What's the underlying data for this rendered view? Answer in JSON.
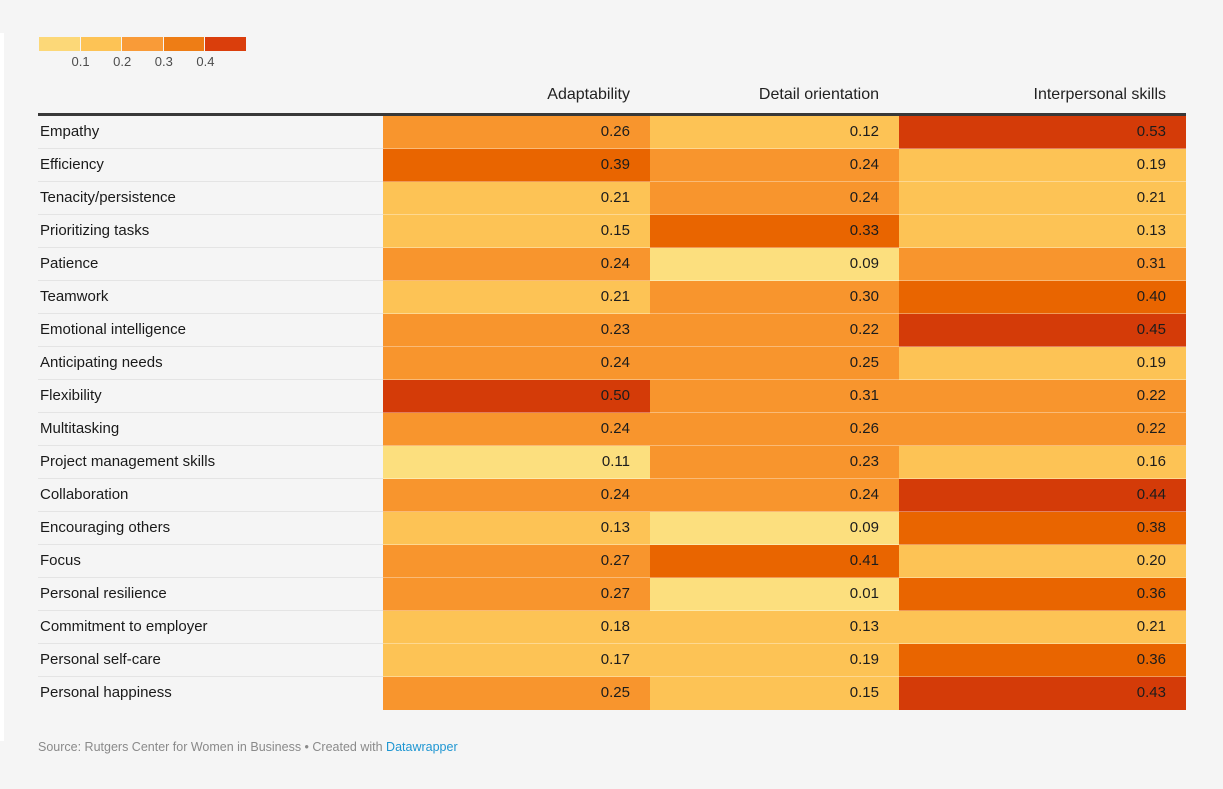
{
  "palette": {
    "cell_classes": [
      "#FCDF7E",
      "#FDC355",
      "#F8952D",
      "#E96500",
      "#D43B08"
    ],
    "header_border": "#383838",
    "link_blue": "#1E96D2",
    "page_background": "#F5F5F5"
  },
  "legend": {
    "swatches": [
      "#FCD878",
      "#FDC355",
      "#F99B38",
      "#EE7D15",
      "#DA3E0C"
    ],
    "ticks": [
      "0.1",
      "0.2",
      "0.3",
      "0.4"
    ]
  },
  "table": {
    "columns": [
      "Adaptability",
      "Detail orientation",
      "Interpersonal skills"
    ],
    "rows": [
      {
        "label": "Empathy",
        "values": [
          "0.26",
          "0.12",
          "0.53"
        ],
        "classes": [
          3,
          2,
          5
        ]
      },
      {
        "label": "Efficiency",
        "values": [
          "0.39",
          "0.24",
          "0.19"
        ],
        "classes": [
          4,
          3,
          2
        ]
      },
      {
        "label": "Tenacity/persistence",
        "values": [
          "0.21",
          "0.24",
          "0.21"
        ],
        "classes": [
          2,
          3,
          2
        ]
      },
      {
        "label": "Prioritizing tasks",
        "values": [
          "0.15",
          "0.33",
          "0.13"
        ],
        "classes": [
          2,
          4,
          2
        ]
      },
      {
        "label": "Patience",
        "values": [
          "0.24",
          "0.09",
          "0.31"
        ],
        "classes": [
          3,
          1,
          3
        ]
      },
      {
        "label": "Teamwork",
        "values": [
          "0.21",
          "0.30",
          "0.40"
        ],
        "classes": [
          2,
          3,
          4
        ]
      },
      {
        "label": "Emotional intelligence",
        "values": [
          "0.23",
          "0.22",
          "0.45"
        ],
        "classes": [
          3,
          3,
          5
        ]
      },
      {
        "label": "Anticipating needs",
        "values": [
          "0.24",
          "0.25",
          "0.19"
        ],
        "classes": [
          3,
          3,
          2
        ]
      },
      {
        "label": "Flexibility",
        "values": [
          "0.50",
          "0.31",
          "0.22"
        ],
        "classes": [
          5,
          3,
          3
        ]
      },
      {
        "label": "Multitasking",
        "values": [
          "0.24",
          "0.26",
          "0.22"
        ],
        "classes": [
          3,
          3,
          3
        ]
      },
      {
        "label": "Project management skills",
        "values": [
          "0.11",
          "0.23",
          "0.16"
        ],
        "classes": [
          1,
          3,
          2
        ]
      },
      {
        "label": "Collaboration",
        "values": [
          "0.24",
          "0.24",
          "0.44"
        ],
        "classes": [
          3,
          3,
          5
        ]
      },
      {
        "label": "Encouraging others",
        "values": [
          "0.13",
          "0.09",
          "0.38"
        ],
        "classes": [
          2,
          1,
          4
        ]
      },
      {
        "label": "Focus",
        "values": [
          "0.27",
          "0.41",
          "0.20"
        ],
        "classes": [
          3,
          4,
          2
        ]
      },
      {
        "label": "Personal resilience",
        "values": [
          "0.27",
          "0.01",
          "0.36"
        ],
        "classes": [
          3,
          1,
          4
        ]
      },
      {
        "label": "Commitment to employer",
        "values": [
          "0.18",
          "0.13",
          "0.21"
        ],
        "classes": [
          2,
          2,
          2
        ]
      },
      {
        "label": "Personal self-care",
        "values": [
          "0.17",
          "0.19",
          "0.36"
        ],
        "classes": [
          2,
          2,
          4
        ]
      },
      {
        "label": "Personal happiness",
        "values": [
          "0.25",
          "0.15",
          "0.43"
        ],
        "classes": [
          3,
          2,
          5
        ]
      }
    ]
  },
  "footer": {
    "source_text": "Source: Rutgers Center for Women in Business • Created with ",
    "link_label": "Datawrapper"
  },
  "chart_data": {
    "type": "heatmap",
    "title": "",
    "x_categories": [
      "Adaptability",
      "Detail orientation",
      "Interpersonal skills"
    ],
    "y_categories": [
      "Empathy",
      "Efficiency",
      "Tenacity/persistence",
      "Prioritizing tasks",
      "Patience",
      "Teamwork",
      "Emotional intelligence",
      "Anticipating needs",
      "Flexibility",
      "Multitasking",
      "Project management skills",
      "Collaboration",
      "Encouraging others",
      "Focus",
      "Personal resilience",
      "Commitment to employer",
      "Personal self-care",
      "Personal happiness"
    ],
    "values": [
      [
        0.26,
        0.12,
        0.53
      ],
      [
        0.39,
        0.24,
        0.19
      ],
      [
        0.21,
        0.24,
        0.21
      ],
      [
        0.15,
        0.33,
        0.13
      ],
      [
        0.24,
        0.09,
        0.31
      ],
      [
        0.21,
        0.3,
        0.4
      ],
      [
        0.23,
        0.22,
        0.45
      ],
      [
        0.24,
        0.25,
        0.19
      ],
      [
        0.5,
        0.31,
        0.22
      ],
      [
        0.24,
        0.26,
        0.22
      ],
      [
        0.11,
        0.23,
        0.16
      ],
      [
        0.24,
        0.24,
        0.44
      ],
      [
        0.13,
        0.09,
        0.38
      ],
      [
        0.27,
        0.41,
        0.2
      ],
      [
        0.27,
        0.01,
        0.36
      ],
      [
        0.18,
        0.13,
        0.21
      ],
      [
        0.17,
        0.19,
        0.36
      ],
      [
        0.25,
        0.15,
        0.43
      ]
    ],
    "color_scale": {
      "type": "stepped",
      "breaks": [
        0.1,
        0.2,
        0.3,
        0.4
      ],
      "colors": [
        "#FCD878",
        "#FDC355",
        "#F99B38",
        "#EE7D15",
        "#DA3E0C"
      ],
      "legend_position": "top-left"
    },
    "value_format": "0.00",
    "source": "Rutgers Center for Women in Business",
    "tool": "Datawrapper"
  }
}
